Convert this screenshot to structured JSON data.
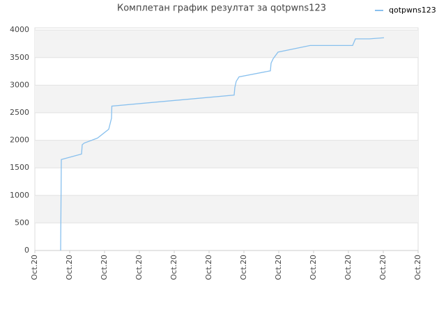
{
  "chart_data": {
    "type": "line",
    "title": "Комплетан график резултат за qotpwns123",
    "x": [
      0.74,
      0.75,
      0.76,
      1.34,
      1.36,
      1.42,
      1.8,
      2.12,
      2.2,
      2.21,
      5.72,
      5.74,
      5.78,
      5.86,
      6.76,
      6.78,
      6.84,
      6.98,
      7.9,
      9.12,
      9.2,
      9.6,
      10.02
    ],
    "series": [
      {
        "name": "qotpwns123",
        "color": "#88c0ee",
        "values": [
          0,
          800,
          1650,
          1750,
          1920,
          1950,
          2040,
          2200,
          2400,
          2620,
          2820,
          2960,
          3070,
          3150,
          3260,
          3400,
          3480,
          3600,
          3720,
          3720,
          3840,
          3840,
          3860
        ]
      }
    ],
    "xlim": [
      0,
      11
    ],
    "xticks": [
      {
        "value": 0,
        "label": "Oct.20"
      },
      {
        "value": 1,
        "label": "Oct.20"
      },
      {
        "value": 2,
        "label": "Oct.20"
      },
      {
        "value": 3,
        "label": "Oct.20"
      },
      {
        "value": 4,
        "label": "Oct.20"
      },
      {
        "value": 5,
        "label": "Oct.20"
      },
      {
        "value": 6,
        "label": "Oct.20"
      },
      {
        "value": 7,
        "label": "Oct.20"
      },
      {
        "value": 8,
        "label": "Oct.20"
      },
      {
        "value": 9,
        "label": "Oct.20"
      },
      {
        "value": 10,
        "label": "Oct.20"
      },
      {
        "value": 11,
        "label": "Oct.20"
      }
    ],
    "ylim": [
      0,
      4040
    ],
    "yticks": [
      0,
      500,
      1000,
      1500,
      2000,
      2500,
      3000,
      3500,
      4000
    ],
    "grid": true,
    "legend": "upper right"
  }
}
